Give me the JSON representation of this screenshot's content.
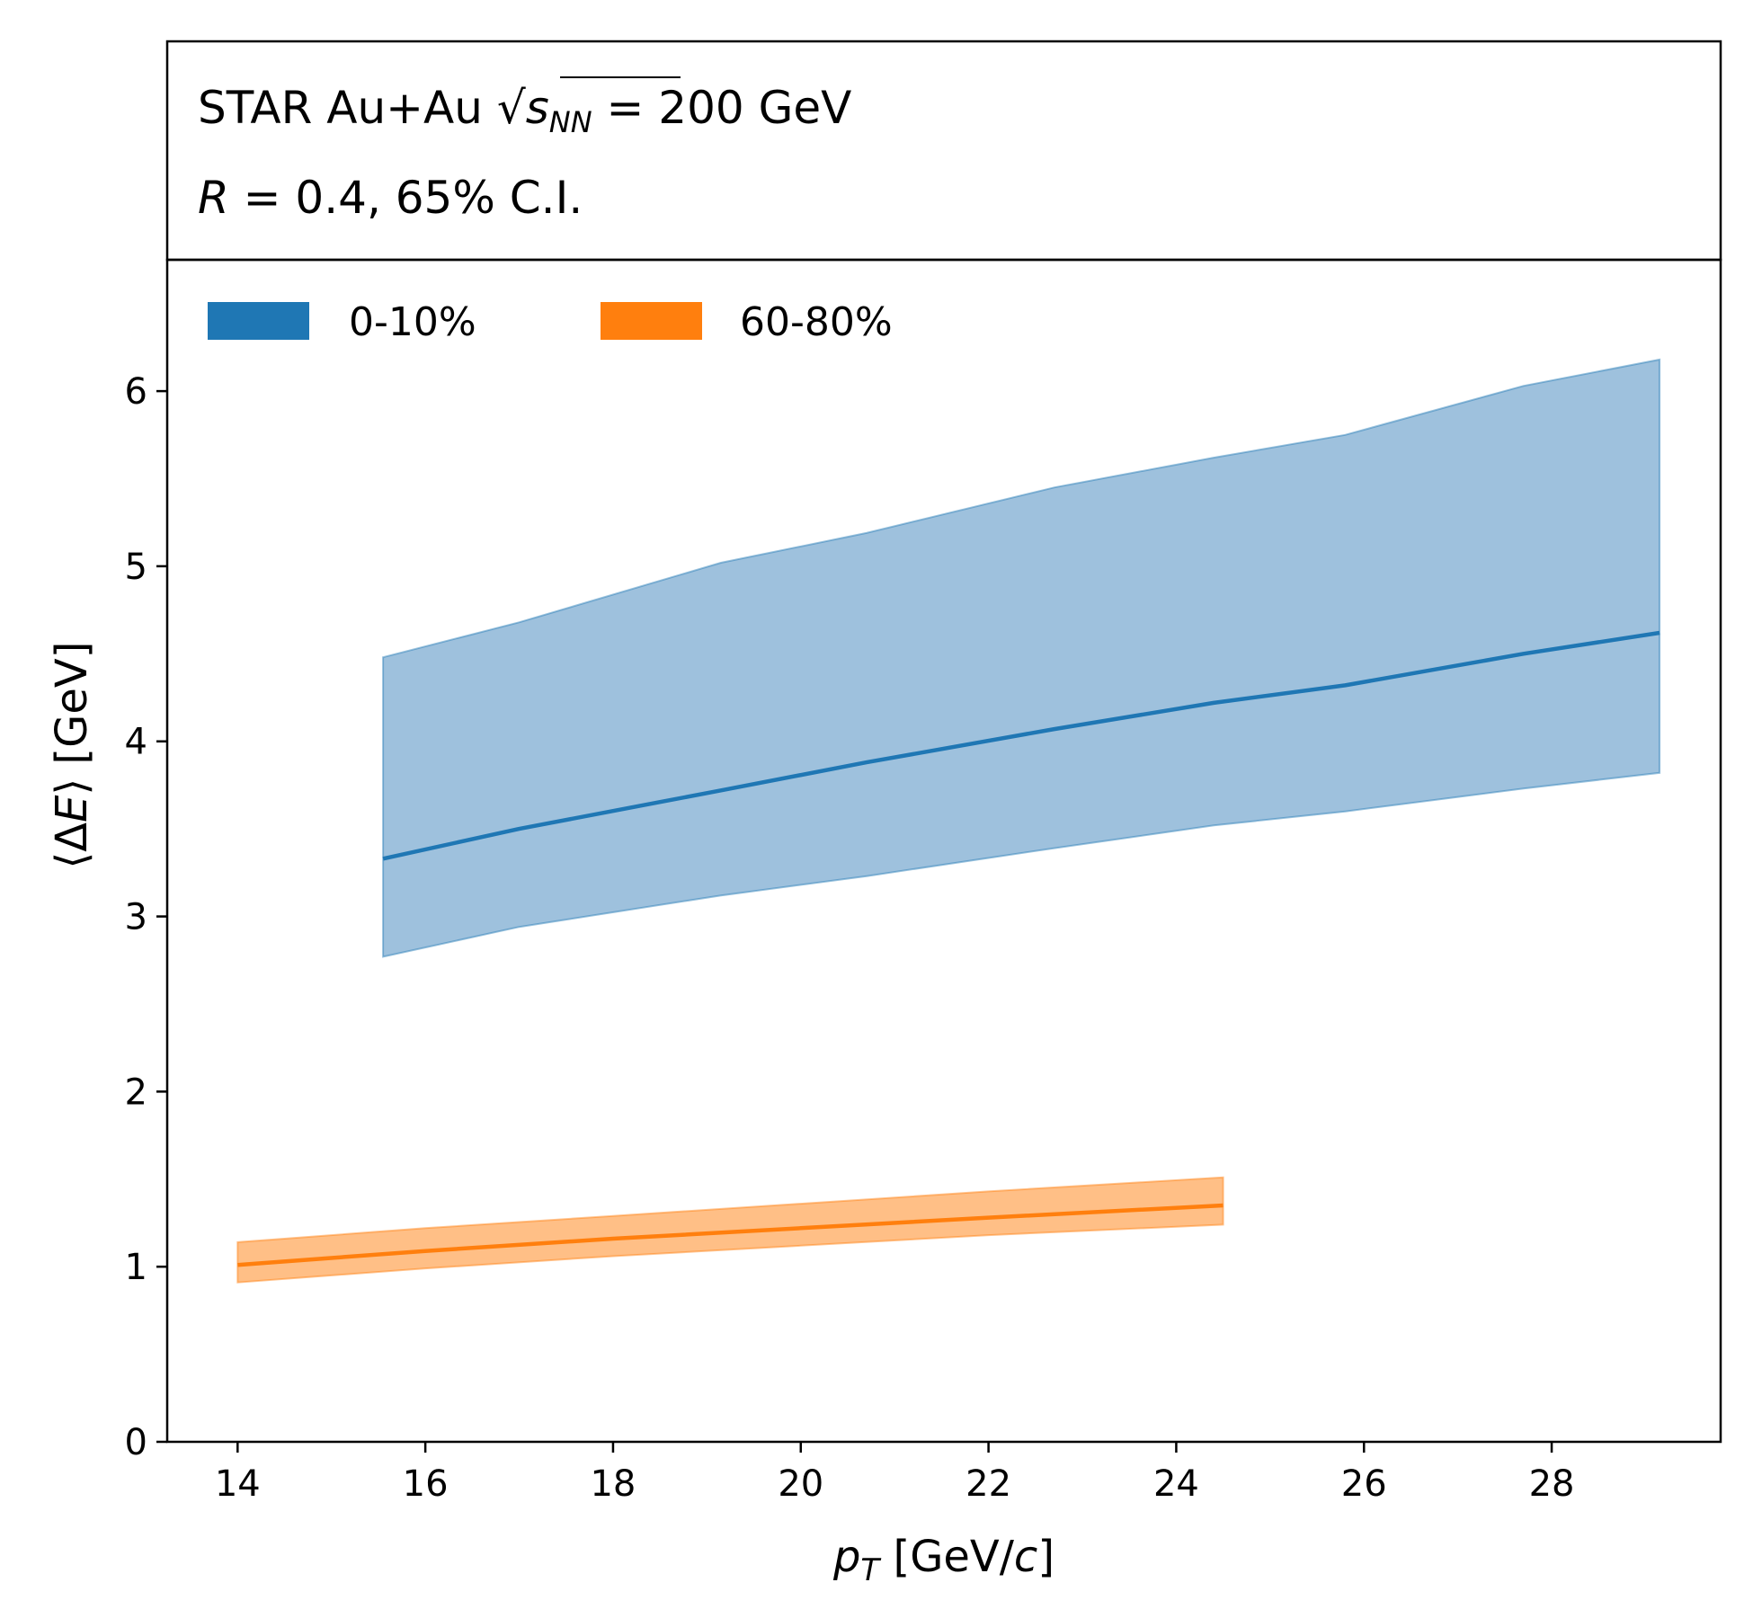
{
  "header": {
    "line1_prefix": "STAR Au+Au ",
    "line1_sqrt": "√",
    "line1_s": "s",
    "line1_sub": "NN",
    "line1_suffix": " = 200 GeV",
    "line2_R": "R",
    "line2_rest": " = 0.4, 65% C.I."
  },
  "chart_data": {
    "type": "area",
    "title": "",
    "xlabel_var": "p",
    "xlabel_sub": "T",
    "xlabel_unit_open": " [GeV/",
    "xlabel_unit_c": "c",
    "xlabel_unit_close": "]",
    "ylabel_open": "⟨Δ",
    "ylabel_E": "E",
    "ylabel_close": "⟩ [GeV]",
    "xlim": [
      13.25,
      29.8
    ],
    "ylim": [
      0,
      6.75
    ],
    "xticks": [
      14,
      16,
      18,
      20,
      22,
      24,
      26,
      28
    ],
    "yticks": [
      0,
      1,
      2,
      3,
      4,
      5,
      6
    ],
    "grid": false,
    "legend_position": "top-left",
    "series": [
      {
        "name": "0-10%",
        "color": "#1f77b4",
        "fill_color": "#9ec1dd",
        "x": [
          15.55,
          17.0,
          19.15,
          20.7,
          22.7,
          24.4,
          25.8,
          27.7,
          29.15
        ],
        "y": [
          3.33,
          3.5,
          3.72,
          3.88,
          4.07,
          4.22,
          4.32,
          4.5,
          4.62
        ],
        "upper": [
          4.48,
          4.68,
          5.02,
          5.19,
          5.45,
          5.62,
          5.75,
          6.03,
          6.18
        ],
        "lower": [
          2.77,
          2.94,
          3.12,
          3.23,
          3.39,
          3.52,
          3.6,
          3.73,
          3.82
        ]
      },
      {
        "name": "60-80%",
        "color": "#ff7f0e",
        "fill_color": "#ffbf86",
        "x": [
          14.0,
          16.0,
          18.0,
          20.0,
          22.0,
          24.5
        ],
        "y": [
          1.01,
          1.09,
          1.16,
          1.22,
          1.28,
          1.35
        ],
        "upper": [
          1.14,
          1.22,
          1.29,
          1.36,
          1.43,
          1.51
        ],
        "lower": [
          0.91,
          0.99,
          1.06,
          1.12,
          1.18,
          1.24
        ]
      }
    ]
  }
}
